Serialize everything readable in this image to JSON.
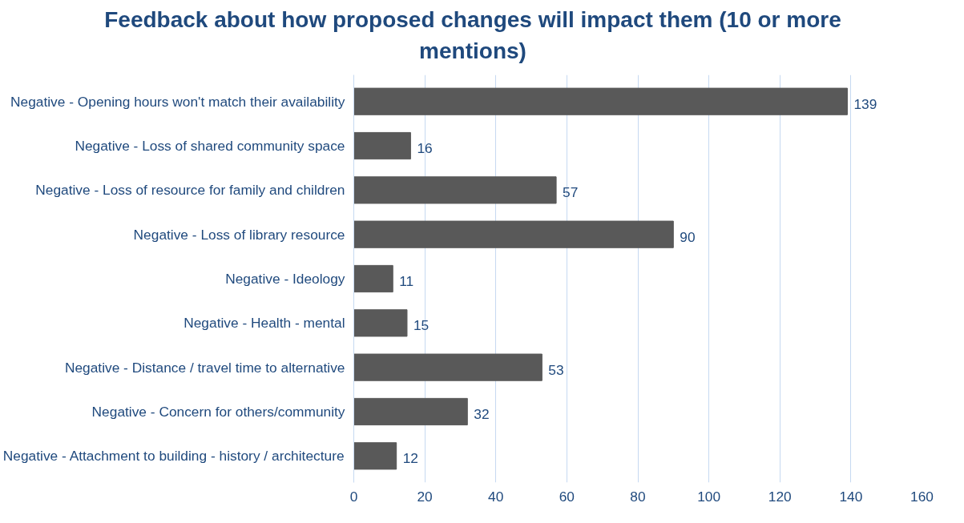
{
  "chart_data": {
    "type": "bar",
    "orientation": "horizontal",
    "title": "Feedback about how proposed changes will impact them (10 or more mentions)",
    "categories": [
      "Negative - Opening hours won't match their availability",
      "Negative - Loss of shared community space",
      "Negative - Loss of resource for family and children",
      "Negative - Loss of library resource",
      "Negative - Ideology",
      "Negative - Health - mental",
      "Negative - Distance / travel time to alternative",
      "Negative - Concern for others/community",
      "Negative - Attachment to building - history / architecture"
    ],
    "values": [
      139,
      16,
      57,
      90,
      11,
      15,
      53,
      32,
      12
    ],
    "color": "#595959",
    "xlim": [
      0,
      160
    ],
    "xticks": [
      0,
      20,
      40,
      60,
      80,
      100,
      120,
      140,
      160
    ],
    "grid": "x",
    "data_labels": true
  }
}
